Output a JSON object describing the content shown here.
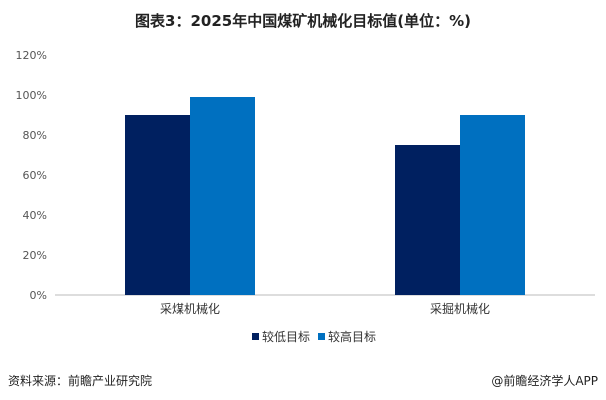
{
  "chart_data": {
    "type": "bar",
    "title": "图表3：2025年中国煤矿机械化目标值(单位：%)",
    "categories": [
      "采煤机械化",
      "采掘机械化"
    ],
    "series": [
      {
        "name": "较低目标",
        "values": [
          90,
          75
        ],
        "color": "#002060"
      },
      {
        "name": "较高目标",
        "values": [
          99,
          90
        ],
        "color": "#0070C0"
      }
    ],
    "ylim": [
      0,
      120
    ],
    "yticks": [
      "0%",
      "20%",
      "40%",
      "60%",
      "80%",
      "100%",
      "120%"
    ],
    "grid": false,
    "legend": "bottom"
  },
  "footer": {
    "source": "资料来源：前瞻产业研究院",
    "brand": "@前瞻经济学人APP"
  }
}
